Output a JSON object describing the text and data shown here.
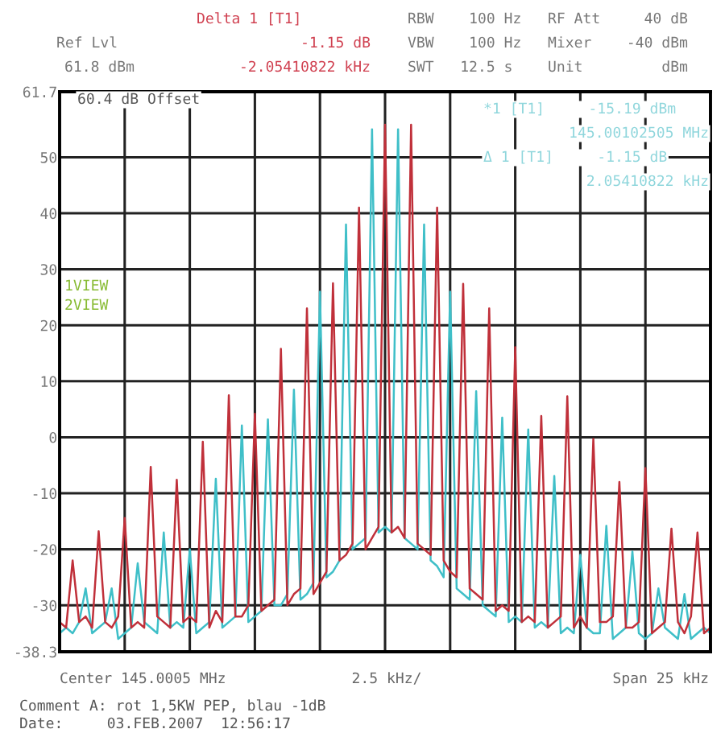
{
  "chart_data": {
    "type": "line",
    "annotations": [
      "Delta 1 [T1]",
      "Ref Lvl",
      "61.8 dBm",
      "-1.15 dB",
      "-2.05410822 kHz",
      "RBW    100 Hz",
      "VBW    100 Hz",
      "SWT   12.5 s",
      "RF Att     40 dB",
      "Mixer    -40 dBm",
      "Unit         dBm",
      "60.4 dB Offset",
      "*1 [T1]     -15.19 dBm",
      "145.00102505 MHz",
      "Δ 1 [T1]     -1.15 dB",
      "2.05410822 kHz",
      "1VIEW",
      "2VIEW",
      "Center 145.0005 MHz",
      "2.5 kHz/",
      "Span 25 kHz",
      "Comment A: rot 1,5KW PEP, blau -1dB",
      "Date:     03.FEB.2007  12:56:17"
    ],
    "categories": [
      null,
      null,
      null,
      null,
      null,
      null,
      null,
      null,
      null,
      null,
      null,
      null,
      null,
      null,
      null,
      null,
      null,
      null,
      null,
      null,
      null,
      null,
      null,
      null,
      null,
      null,
      null,
      null,
      null,
      null,
      null,
      null,
      null,
      null,
      null,
      null,
      null,
      null,
      null,
      null,
      null,
      null,
      null,
      null,
      null,
      null,
      null,
      null,
      null,
      null,
      null,
      null,
      null,
      null,
      null,
      null,
      null,
      null,
      null,
      null,
      null,
      null,
      null,
      null,
      null,
      null,
      null,
      null,
      null,
      null,
      null,
      null,
      null,
      null,
      null,
      null,
      null,
      null,
      null,
      null,
      null,
      null,
      null,
      null,
      null,
      null,
      null,
      null,
      null,
      null,
      null,
      null,
      null,
      null,
      null,
      null,
      null,
      null,
      null,
      null,
      null
    ],
    "ylim": [
      -38.3,
      61.7
    ],
    "yticks": [
      61.7,
      50,
      40,
      30,
      20,
      10,
      0,
      -10,
      -20,
      -30,
      -38.3
    ],
    "grid": true,
    "series": [
      {
        "color": "#3fbfc8",
        "values": [
          -35,
          -34,
          -35,
          -33,
          -27,
          -35,
          -34,
          -33,
          -27,
          -36,
          -35,
          -34,
          -22.5,
          -33,
          -34,
          -35,
          -17,
          -34,
          -33,
          -34,
          -20,
          -35,
          -34,
          -33,
          -7.4,
          -34,
          -33,
          -32,
          2.1,
          -33,
          -32,
          -31,
          3.2,
          -30,
          -30,
          -28,
          8.5,
          -29,
          -28,
          -26,
          26,
          -25,
          -24,
          -22,
          38,
          -20,
          -19,
          -18,
          55,
          -17,
          -16,
          -17,
          55,
          -18,
          -19,
          -20,
          38,
          -22,
          -23,
          -25,
          26,
          -27,
          -28,
          -29,
          8.2,
          -30,
          -31,
          -32,
          3.5,
          -33,
          -32,
          -33,
          1.4,
          -34,
          -33,
          -34,
          -6.9,
          -35,
          -34,
          -35,
          -21,
          -34,
          -35,
          -35,
          -15.8,
          -36,
          -35,
          -34,
          -20.4,
          -35,
          -36,
          -35,
          -27,
          -34,
          -35,
          -36,
          -28,
          -36,
          -35,
          -34,
          -35
        ]
      },
      {
        "color": "#c0303a",
        "values": [
          -33,
          -34,
          -22,
          -33,
          -32,
          -34,
          -16.8,
          -33,
          -34,
          -32,
          -14.4,
          -34,
          -33,
          -34,
          -5.3,
          -32,
          -33,
          -34,
          -7.6,
          -33,
          -32,
          -33,
          -0.8,
          -34,
          -31,
          -33,
          7.5,
          -32,
          -32,
          -30,
          4.2,
          -31,
          -30,
          -29,
          15.8,
          -30,
          -28,
          -27,
          23,
          -28,
          -26,
          -24,
          27.5,
          -22,
          -21,
          -19,
          41,
          -20,
          -18,
          -16,
          55.8,
          -17,
          -16,
          -18,
          55.8,
          -19,
          -20,
          -21,
          41,
          -22,
          -24,
          -25,
          27.4,
          -27,
          -28,
          -29,
          23,
          -31,
          -30,
          -31,
          16.1,
          -33,
          -32,
          -33,
          3.8,
          -34,
          -33,
          -32,
          7.3,
          -34,
          -32,
          -34,
          -0.3,
          -33,
          -33,
          -32,
          -8,
          -34,
          -34,
          -33,
          -5.5,
          -35,
          -34,
          -33,
          -16.3,
          -33,
          -35,
          -32,
          -17,
          -35,
          -34
        ]
      }
    ]
  }
}
